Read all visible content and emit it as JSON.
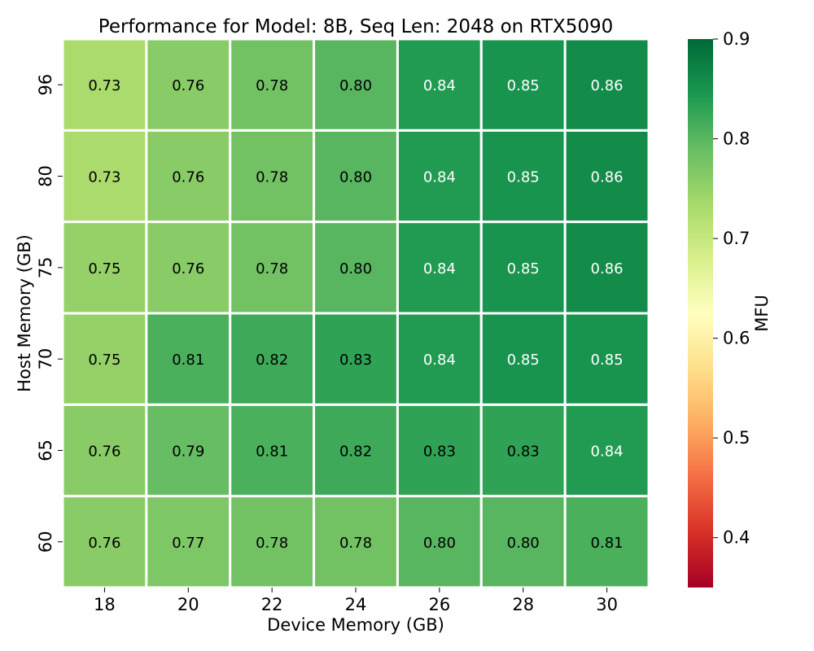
{
  "chart_data": {
    "type": "heatmap",
    "title": "Performance for Model: 8B, Seq Len: 2048 on RTX5090",
    "xlabel": "Device Memory (GB)",
    "ylabel": "Host Memory (GB)",
    "x_categories": [
      "18",
      "20",
      "22",
      "24",
      "26",
      "28",
      "30"
    ],
    "y_categories": [
      "96",
      "80",
      "75",
      "70",
      "65",
      "60"
    ],
    "values": [
      [
        0.73,
        0.76,
        0.78,
        0.8,
        0.84,
        0.85,
        0.86
      ],
      [
        0.73,
        0.76,
        0.78,
        0.8,
        0.84,
        0.85,
        0.86
      ],
      [
        0.75,
        0.76,
        0.78,
        0.8,
        0.84,
        0.85,
        0.86
      ],
      [
        0.75,
        0.81,
        0.82,
        0.83,
        0.84,
        0.85,
        0.85
      ],
      [
        0.76,
        0.79,
        0.81,
        0.82,
        0.83,
        0.83,
        0.84
      ],
      [
        0.76,
        0.77,
        0.78,
        0.78,
        0.8,
        0.8,
        0.81
      ]
    ],
    "colorbar": {
      "label": "MFU",
      "range": [
        0.35,
        0.9
      ],
      "ticks": [
        "0.4",
        "0.5",
        "0.6",
        "0.7",
        "0.8",
        "0.9"
      ],
      "colormap": "RdYlGn"
    },
    "annotation_format": "2 decimals"
  }
}
